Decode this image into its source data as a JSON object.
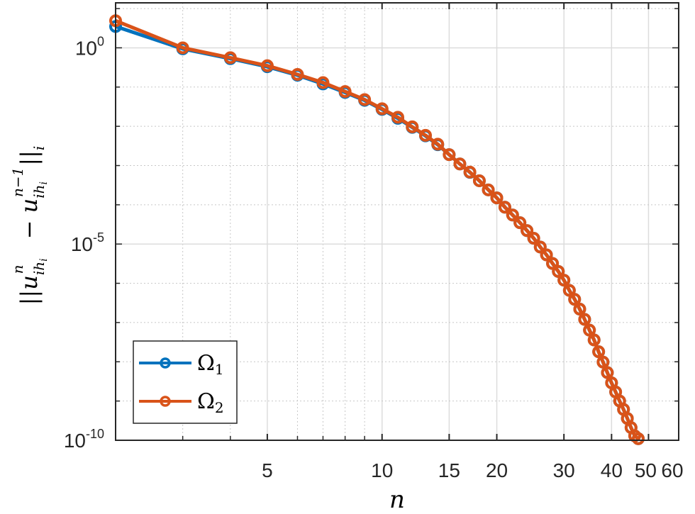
{
  "chart_data": {
    "type": "line",
    "title": "",
    "xlabel": "n",
    "ylabel": "||u_{ih_i}^n - u_{ih_i}^{n-1}||_i",
    "xscale": "log",
    "yscale": "log",
    "xlim": [
      2,
      60
    ],
    "ylim": [
      1e-10,
      14
    ],
    "grid": true,
    "legend_position": "lower left",
    "x_ticks": [
      5,
      10,
      15,
      20,
      30,
      40,
      50,
      60
    ],
    "x_tick_labels": [
      "5",
      "10",
      "15",
      "20",
      "30",
      "40",
      "50",
      "60"
    ],
    "y_ticks": [
      1.0,
      1e-05,
      1e-10
    ],
    "y_tick_labels": [
      {
        "base": "10",
        "exp": "0"
      },
      {
        "base": "10",
        "exp": "-5"
      },
      {
        "base": "10",
        "exp": "-10"
      }
    ],
    "x": [
      2,
      3,
      4,
      5,
      6,
      7,
      8,
      9,
      10,
      11,
      12,
      13,
      14,
      15,
      16,
      17,
      18,
      19,
      20,
      21,
      22,
      23,
      24,
      25,
      26,
      27,
      28,
      29,
      30,
      31,
      32,
      33,
      34,
      35,
      36,
      37,
      38,
      39,
      40,
      41,
      42,
      43,
      44,
      45,
      46,
      47
    ],
    "series": [
      {
        "name": "Ω1",
        "legend_main": "Ω",
        "legend_sub": "1",
        "color": "#0072BD",
        "marker": "circle",
        "values": [
          3.5,
          0.94,
          0.53,
          0.33,
          0.2,
          0.12,
          0.073,
          0.046,
          0.027,
          0.016,
          0.0094,
          0.0057,
          0.0034,
          0.0019,
          0.0011,
          0.00067,
          0.00041,
          0.00024,
          0.00015,
          8.7e-05,
          5.5e-05,
          3.5e-05,
          2.2e-05,
          1.4e-05,
          8.4e-06,
          5.3e-06,
          3.2e-06,
          2e-06,
          1.2e-06,
          6.6e-07,
          3.9e-07,
          2.2e-07,
          1.2e-07,
          6.4e-08,
          3.6e-08,
          1.8e-08,
          9.8e-09,
          5.3e-09,
          2.9e-09,
          1.7e-09,
          1e-09,
          6.1e-10,
          3.6e-10,
          2.1e-10,
          1.3e-10,
          1.1e-10
        ]
      },
      {
        "name": "Ω2",
        "legend_main": "Ω",
        "legend_sub": "2",
        "color": "#D95319",
        "marker": "circle",
        "values": [
          4.9,
          1.0,
          0.56,
          0.35,
          0.21,
          0.13,
          0.077,
          0.048,
          0.028,
          0.017,
          0.0097,
          0.0059,
          0.0035,
          0.0019,
          0.0011,
          0.00068,
          0.00041,
          0.00024,
          0.00015,
          8.7e-05,
          5.5e-05,
          3.5e-05,
          2.2e-05,
          1.4e-05,
          8.4e-06,
          5.3e-06,
          3.2e-06,
          2e-06,
          1.2e-06,
          6.6e-07,
          3.9e-07,
          2.2e-07,
          1.2e-07,
          6.4e-08,
          3.6e-08,
          1.8e-08,
          9.8e-09,
          5.3e-09,
          2.9e-09,
          1.7e-09,
          1e-09,
          6.1e-10,
          3.6e-10,
          2.1e-10,
          1.3e-10,
          1.1e-10
        ]
      }
    ]
  }
}
